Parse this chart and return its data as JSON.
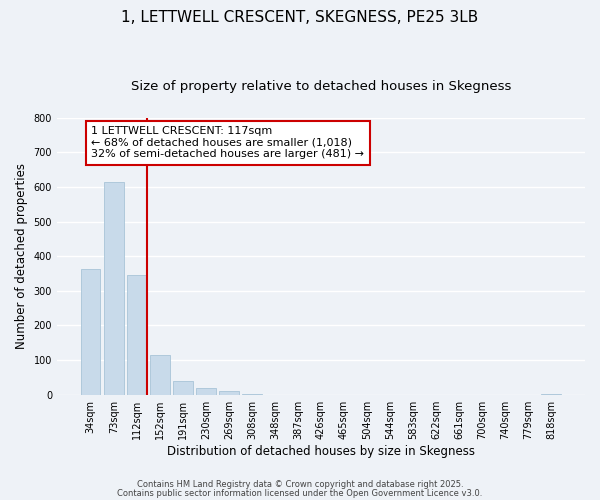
{
  "title": "1, LETTWELL CRESCENT, SKEGNESS, PE25 3LB",
  "subtitle": "Size of property relative to detached houses in Skegness",
  "xlabel": "Distribution of detached houses by size in Skegness",
  "ylabel": "Number of detached properties",
  "categories": [
    "34sqm",
    "73sqm",
    "112sqm",
    "152sqm",
    "191sqm",
    "230sqm",
    "269sqm",
    "308sqm",
    "348sqm",
    "387sqm",
    "426sqm",
    "465sqm",
    "504sqm",
    "544sqm",
    "583sqm",
    "622sqm",
    "661sqm",
    "700sqm",
    "740sqm",
    "779sqm",
    "818sqm"
  ],
  "values": [
    362,
    614,
    345,
    115,
    41,
    20,
    12,
    3,
    0,
    0,
    0,
    0,
    0,
    0,
    0,
    0,
    0,
    0,
    0,
    0,
    2
  ],
  "bar_color": "#c8daea",
  "bar_edge_color": "#a8c4d8",
  "vline_color": "#cc0000",
  "annotation_line1": "1 LETTWELL CRESCENT: 117sqm",
  "annotation_line2": "← 68% of detached houses are smaller (1,018)",
  "annotation_line3": "32% of semi-detached houses are larger (481) →",
  "box_edge_color": "#cc0000",
  "ylim": [
    0,
    800
  ],
  "yticks": [
    0,
    100,
    200,
    300,
    400,
    500,
    600,
    700,
    800
  ],
  "footer1": "Contains HM Land Registry data © Crown copyright and database right 2025.",
  "footer2": "Contains public sector information licensed under the Open Government Licence v3.0.",
  "background_color": "#eef2f7",
  "grid_color": "#ffffff",
  "title_fontsize": 11,
  "subtitle_fontsize": 9.5,
  "axis_label_fontsize": 8.5,
  "tick_fontsize": 7,
  "annotation_fontsize": 8,
  "footer_fontsize": 6
}
